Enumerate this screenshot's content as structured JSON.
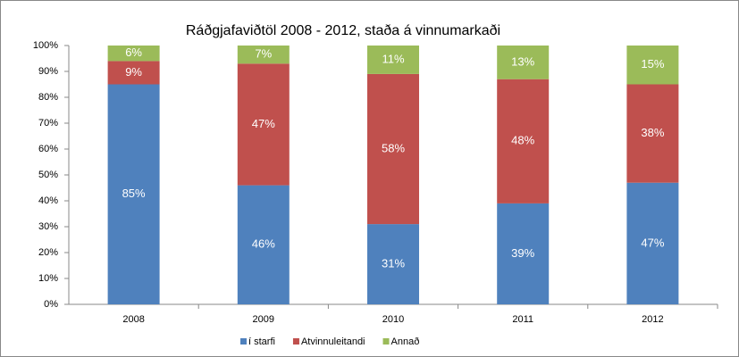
{
  "chart_data": {
    "type": "stacked_bar",
    "title": "Ráðgjafaviðtöl 2008 - 2012, staða á vinnumarkaði",
    "categories": [
      "2008",
      "2009",
      "2010",
      "2011",
      "2012"
    ],
    "series": [
      {
        "name": "í starfi",
        "color": "#4f81bd",
        "values": [
          85,
          46,
          31,
          39,
          47
        ],
        "value_labels": [
          "85%",
          "46%",
          "31%",
          "39%",
          "47%"
        ]
      },
      {
        "name": "Atvinnuleitandi",
        "color": "#c0504d",
        "values": [
          9,
          47,
          58,
          48,
          38
        ],
        "value_labels": [
          "9%",
          "47%",
          "58%",
          "48%",
          "38%"
        ]
      },
      {
        "name": "Annað",
        "color": "#9bbb59",
        "values": [
          6,
          7,
          11,
          13,
          15
        ],
        "value_labels": [
          "6%",
          "7%",
          "11%",
          "13%",
          "15%"
        ]
      }
    ],
    "ylim": [
      0,
      100
    ],
    "yticks": [
      {
        "value": 0,
        "label": "0%"
      },
      {
        "value": 10,
        "label": "10%"
      },
      {
        "value": 20,
        "label": "20%"
      },
      {
        "value": 30,
        "label": "30%"
      },
      {
        "value": 40,
        "label": "40%"
      },
      {
        "value": 50,
        "label": "50%"
      },
      {
        "value": 60,
        "label": "60%"
      },
      {
        "value": 70,
        "label": "70%"
      },
      {
        "value": 80,
        "label": "80%"
      },
      {
        "value": 90,
        "label": "90%"
      },
      {
        "value": 100,
        "label": "100%"
      }
    ],
    "legend": "bottom"
  }
}
